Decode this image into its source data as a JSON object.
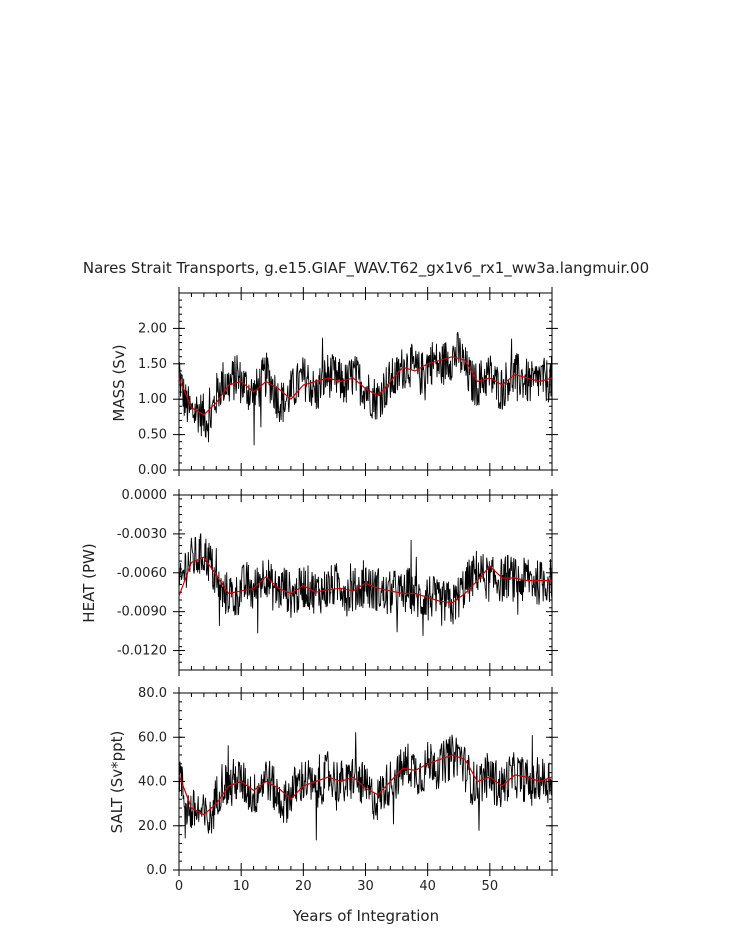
{
  "title": "Nares Strait Transports, g.e15.GIAF_WAV.T62_gx1v6_rx1_ww3a.langmuir.00",
  "colors": {
    "raw": "#000000",
    "smoothed": "#d40000",
    "frame": "#000000"
  },
  "chart_data": [
    {
      "type": "line",
      "ylabel": "MASS (Sv)",
      "xlim": [
        0,
        60
      ],
      "ylim": [
        0.0,
        2.5
      ],
      "xticks": [
        0,
        10,
        20,
        30,
        40,
        50
      ],
      "yticks": [
        0.0,
        0.5,
        1.0,
        1.5,
        2.0
      ],
      "ytick_labels": [
        "0.00",
        "0.50",
        "1.00",
        "1.50",
        "2.00"
      ],
      "series": [
        {
          "style": "raw",
          "x": [
            0,
            1,
            2,
            3,
            4,
            5,
            6,
            7,
            8,
            9,
            10,
            11,
            12,
            13,
            14,
            15,
            16,
            17,
            18,
            19,
            20,
            21,
            22,
            23,
            24,
            25,
            26,
            27,
            28,
            29,
            30,
            31,
            32,
            33,
            34,
            35,
            36,
            37,
            38,
            39,
            40,
            41,
            42,
            43,
            44,
            45,
            46,
            47,
            48,
            49,
            50,
            51,
            52,
            53,
            54,
            55,
            56,
            57,
            58,
            59,
            60
          ],
          "y": [
            1.35,
            0.95,
            0.8,
            0.85,
            0.75,
            0.7,
            1.05,
            1.25,
            1.2,
            1.3,
            1.25,
            1.15,
            1.05,
            1.2,
            1.35,
            1.2,
            1.0,
            0.95,
            1.1,
            1.2,
            1.3,
            1.25,
            1.05,
            1.25,
            1.35,
            1.3,
            1.25,
            1.2,
            1.35,
            1.25,
            1.15,
            1.05,
            1.0,
            1.15,
            1.25,
            1.3,
            1.45,
            1.5,
            1.4,
            1.35,
            1.5,
            1.55,
            1.45,
            1.55,
            1.6,
            1.65,
            1.45,
            1.25,
            1.2,
            1.3,
            1.35,
            1.2,
            1.15,
            1.3,
            1.35,
            1.3,
            1.25,
            1.2,
            1.3,
            1.25,
            1.3
          ]
        },
        {
          "style": "smoothed",
          "x": [
            0,
            2,
            4,
            6,
            8,
            10,
            12,
            14,
            16,
            18,
            20,
            22,
            24,
            26,
            28,
            30,
            32,
            34,
            36,
            38,
            40,
            42,
            44,
            46,
            48,
            50,
            52,
            54,
            56,
            58,
            60
          ],
          "y": [
            1.3,
            0.88,
            0.78,
            0.95,
            1.2,
            1.25,
            1.1,
            1.25,
            1.15,
            1.0,
            1.2,
            1.25,
            1.3,
            1.25,
            1.3,
            1.15,
            1.05,
            1.25,
            1.45,
            1.4,
            1.5,
            1.55,
            1.6,
            1.55,
            1.25,
            1.3,
            1.2,
            1.35,
            1.3,
            1.25,
            1.3
          ]
        }
      ]
    },
    {
      "type": "line",
      "ylabel": "HEAT (PW)",
      "xlim": [
        0,
        60
      ],
      "ylim": [
        -0.0135,
        0.0
      ],
      "xticks": [
        0,
        10,
        20,
        30,
        40,
        50
      ],
      "yticks": [
        -0.012,
        -0.009,
        -0.006,
        -0.003,
        0.0
      ],
      "ytick_labels": [
        "-0.0120",
        "-0.0090",
        "-0.0060",
        "-0.0030",
        "0.0000"
      ],
      "series": [
        {
          "style": "raw",
          "x": [
            0,
            1,
            2,
            3,
            4,
            5,
            6,
            7,
            8,
            9,
            10,
            11,
            12,
            13,
            14,
            15,
            16,
            17,
            18,
            19,
            20,
            21,
            22,
            23,
            24,
            25,
            26,
            27,
            28,
            29,
            30,
            31,
            32,
            33,
            34,
            35,
            36,
            37,
            38,
            39,
            40,
            41,
            42,
            43,
            44,
            45,
            46,
            47,
            48,
            49,
            50,
            51,
            52,
            53,
            54,
            55,
            56,
            57,
            58,
            59,
            60
          ],
          "y": [
            -0.0075,
            -0.0055,
            -0.005,
            -0.0048,
            -0.0045,
            -0.0052,
            -0.0068,
            -0.0078,
            -0.0075,
            -0.008,
            -0.0072,
            -0.0068,
            -0.0076,
            -0.0065,
            -0.006,
            -0.0072,
            -0.0074,
            -0.007,
            -0.0078,
            -0.0076,
            -0.007,
            -0.0072,
            -0.0075,
            -0.0074,
            -0.0072,
            -0.007,
            -0.0068,
            -0.0076,
            -0.0074,
            -0.0072,
            -0.0068,
            -0.0074,
            -0.0072,
            -0.0078,
            -0.0076,
            -0.0074,
            -0.0078,
            -0.0072,
            -0.0078,
            -0.0082,
            -0.0076,
            -0.008,
            -0.0085,
            -0.0082,
            -0.0086,
            -0.0078,
            -0.007,
            -0.0065,
            -0.0058,
            -0.0062,
            -0.0066,
            -0.0064,
            -0.0066,
            -0.0062,
            -0.0066,
            -0.0068,
            -0.0064,
            -0.0066,
            -0.0068,
            -0.0066,
            -0.0066
          ]
        },
        {
          "style": "smoothed",
          "x": [
            0,
            2,
            4,
            6,
            8,
            10,
            12,
            14,
            16,
            18,
            20,
            22,
            24,
            26,
            28,
            30,
            32,
            34,
            36,
            38,
            40,
            42,
            44,
            46,
            48,
            50,
            52,
            54,
            56,
            58,
            60
          ],
          "y": [
            -0.0078,
            -0.0052,
            -0.0048,
            -0.0062,
            -0.0076,
            -0.0074,
            -0.0072,
            -0.0063,
            -0.0072,
            -0.0076,
            -0.007,
            -0.0075,
            -0.0073,
            -0.0072,
            -0.0074,
            -0.0068,
            -0.0072,
            -0.0074,
            -0.0076,
            -0.0076,
            -0.0079,
            -0.0082,
            -0.0083,
            -0.0076,
            -0.0066,
            -0.0055,
            -0.0064,
            -0.0064,
            -0.0066,
            -0.0066,
            -0.0066
          ]
        }
      ]
    },
    {
      "type": "line",
      "ylabel": "SALT (Sv*ppt)",
      "xlabel": "Years of Integration",
      "xlim": [
        0,
        60
      ],
      "ylim": [
        0.0,
        80.0
      ],
      "xticks": [
        0,
        10,
        20,
        30,
        40,
        50
      ],
      "xtick_labels": [
        "0",
        "10",
        "20",
        "30",
        "40",
        "50"
      ],
      "yticks": [
        0.0,
        20.0,
        40.0,
        60.0,
        80.0
      ],
      "ytick_labels": [
        "0.0",
        "20.0",
        "40.0",
        "60.0",
        "80.0"
      ],
      "series": [
        {
          "style": "raw",
          "x": [
            0,
            1,
            2,
            3,
            4,
            5,
            6,
            7,
            8,
            9,
            10,
            11,
            12,
            13,
            14,
            15,
            16,
            17,
            18,
            19,
            20,
            21,
            22,
            23,
            24,
            25,
            26,
            27,
            28,
            29,
            30,
            31,
            32,
            33,
            34,
            35,
            36,
            37,
            38,
            39,
            40,
            41,
            42,
            43,
            44,
            45,
            46,
            47,
            48,
            49,
            50,
            51,
            52,
            53,
            54,
            55,
            56,
            57,
            58,
            59,
            60
          ],
          "y": [
            45,
            30,
            26,
            27,
            24,
            22,
            33,
            40,
            38,
            41,
            40,
            37,
            33,
            38,
            43,
            38,
            32,
            30,
            35,
            38,
            41,
            40,
            33,
            40,
            43,
            41,
            40,
            38,
            43,
            40,
            37,
            33,
            32,
            37,
            40,
            42,
            46,
            48,
            45,
            43,
            48,
            50,
            46,
            50,
            51,
            53,
            46,
            40,
            38,
            42,
            43,
            38,
            37,
            42,
            43,
            42,
            40,
            38,
            42,
            40,
            42
          ]
        },
        {
          "style": "smoothed",
          "x": [
            0,
            2,
            4,
            6,
            8,
            10,
            12,
            14,
            16,
            18,
            20,
            22,
            24,
            26,
            28,
            30,
            32,
            34,
            36,
            38,
            40,
            42,
            44,
            46,
            48,
            50,
            52,
            54,
            56,
            58,
            60
          ],
          "y": [
            43,
            28,
            25,
            30,
            38,
            40,
            36,
            40,
            37,
            32,
            38,
            40,
            42,
            40,
            42,
            37,
            34,
            40,
            46,
            45,
            48,
            50,
            52,
            50,
            40,
            42,
            38,
            43,
            42,
            40,
            42
          ]
        }
      ]
    }
  ]
}
